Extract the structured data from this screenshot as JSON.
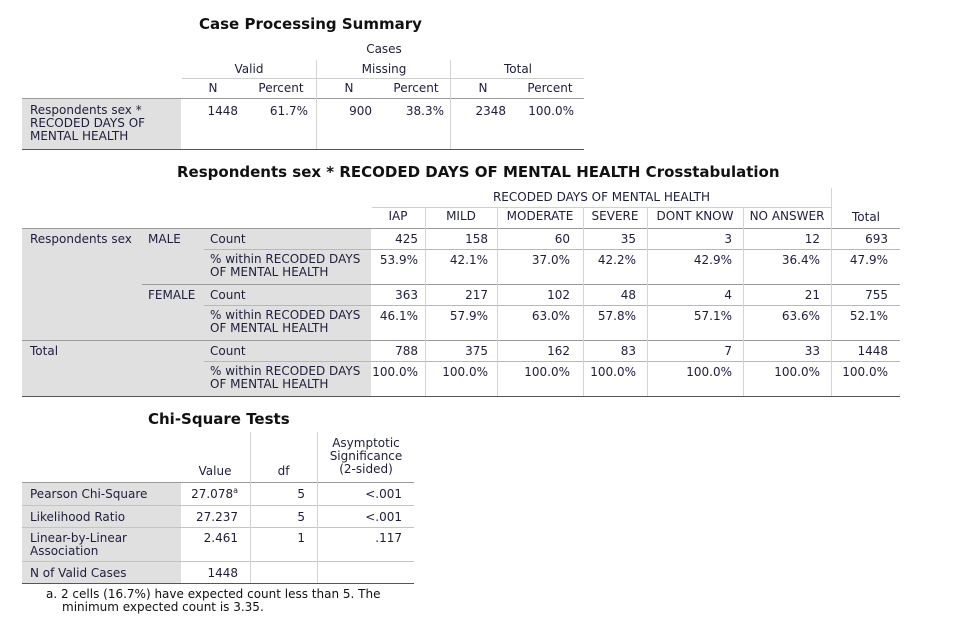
{
  "case_summary": {
    "title": "Case Processing Summary",
    "cases_label": "Cases",
    "groups": [
      "Valid",
      "Missing",
      "Total"
    ],
    "subheaders": [
      "N",
      "Percent",
      "N",
      "Percent",
      "N",
      "Percent"
    ],
    "row_label": [
      "Respondents sex *",
      "RECODED DAYS OF",
      "MENTAL HEALTH"
    ],
    "values": [
      "1448",
      "61.7%",
      "900",
      "38.3%",
      "2348",
      "100.0%"
    ]
  },
  "crosstab": {
    "title": "Respondents sex * RECODED DAYS OF MENTAL HEALTH Crosstabulation",
    "col_group_label": "RECODED DAYS OF MENTAL HEALTH",
    "columns": [
      "IAP",
      "MILD",
      "MODERATE",
      "SEVERE",
      "DONT KNOW",
      "NO ANSWER"
    ],
    "total_label": "Total",
    "row_var": "Respondents sex",
    "stat_count": "Count",
    "stat_pct": [
      "% within RECODED DAYS",
      "OF MENTAL HEALTH"
    ],
    "groups": [
      {
        "label": "MALE",
        "count": [
          "425",
          "158",
          "60",
          "35",
          "3",
          "12",
          "693"
        ],
        "pct": [
          "53.9%",
          "42.1%",
          "37.0%",
          "42.2%",
          "42.9%",
          "36.4%",
          "47.9%"
        ]
      },
      {
        "label": "FEMALE",
        "count": [
          "363",
          "217",
          "102",
          "48",
          "4",
          "21",
          "755"
        ],
        "pct": [
          "46.1%",
          "57.9%",
          "63.0%",
          "57.8%",
          "57.1%",
          "63.6%",
          "52.1%"
        ]
      },
      {
        "label": "Total",
        "count": [
          "788",
          "375",
          "162",
          "83",
          "7",
          "33",
          "1448"
        ],
        "pct": [
          "100.0%",
          "100.0%",
          "100.0%",
          "100.0%",
          "100.0%",
          "100.0%",
          "100.0%"
        ]
      }
    ]
  },
  "chi_square": {
    "title": "Chi-Square Tests",
    "headers": {
      "value": "Value",
      "df": "df",
      "sig": [
        "Asymptotic",
        "Significance",
        "(2-sided)"
      ]
    },
    "rows": [
      {
        "label": [
          "Pearson Chi-Square"
        ],
        "value": "27.078",
        "sup": "a",
        "df": "5",
        "sig": "<.001"
      },
      {
        "label": [
          "Likelihood Ratio"
        ],
        "value": "27.237",
        "sup": "",
        "df": "5",
        "sig": "<.001"
      },
      {
        "label": [
          "Linear-by-Linear",
          "Association"
        ],
        "value": "2.461",
        "sup": "",
        "df": "1",
        "sig": ".117"
      },
      {
        "label": [
          "N of Valid Cases"
        ],
        "value": "1448",
        "sup": "",
        "df": "",
        "sig": ""
      }
    ],
    "footnote": [
      "a. 2 cells (16.7%) have expected count less than 5. The",
      "minimum expected count is 3.35."
    ]
  }
}
